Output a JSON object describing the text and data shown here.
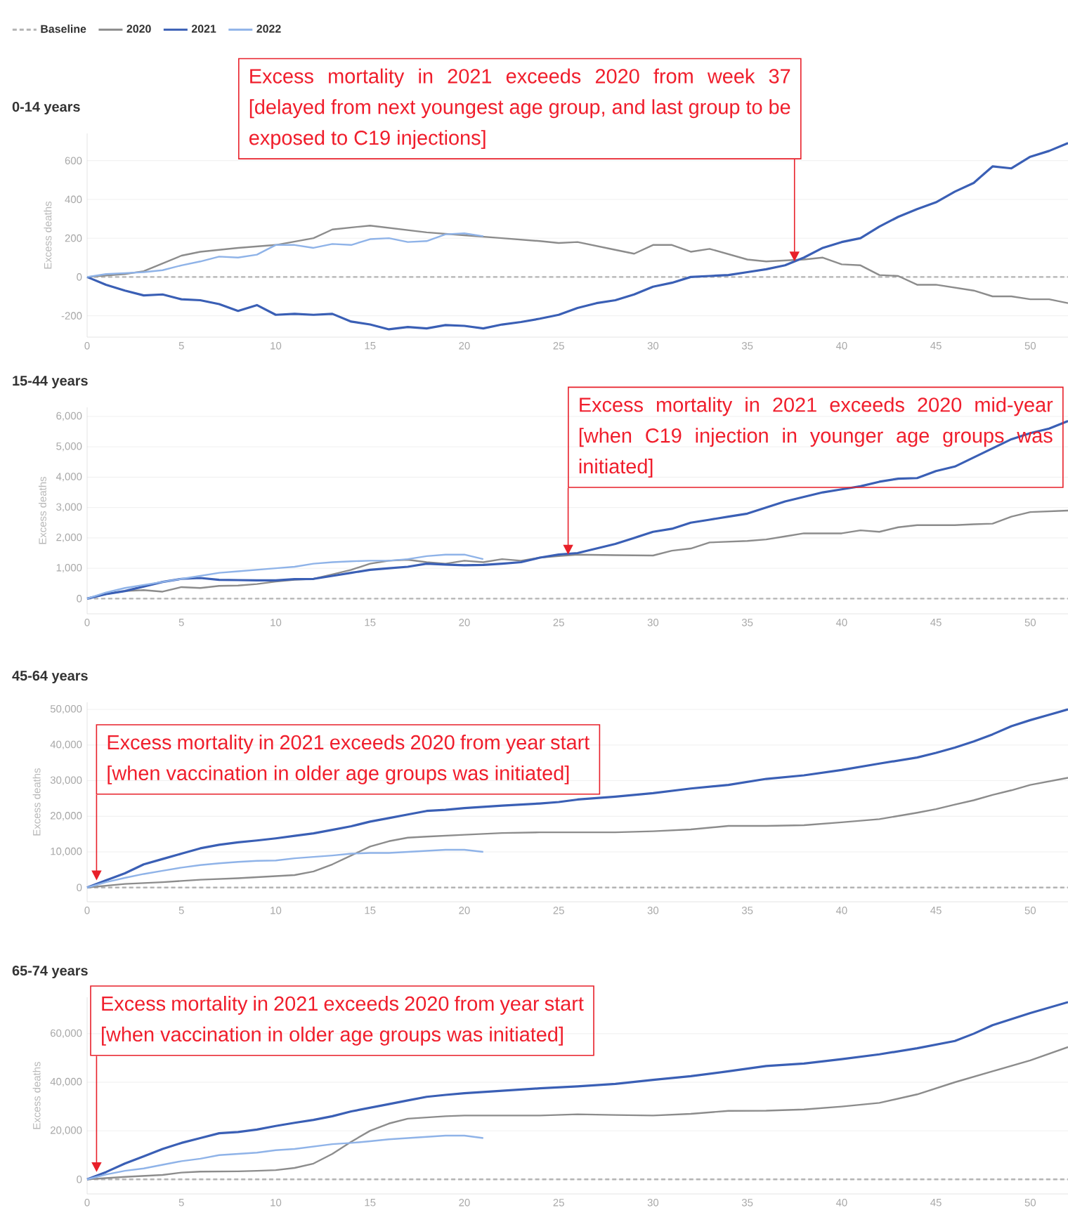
{
  "chart_data": [
    {
      "type": "line",
      "title": "0-14 years",
      "ylabel": "Excess deaths",
      "xlim": [
        0,
        52
      ],
      "xticks": [
        0,
        5,
        10,
        15,
        20,
        25,
        30,
        35,
        40,
        45,
        50
      ],
      "ylim": [
        -310,
        740
      ],
      "yticks": [
        -200,
        0,
        200,
        400,
        600
      ],
      "grid": "y",
      "legend": "top left",
      "series": [
        {
          "name": "Baseline",
          "color": "#b4b4b4",
          "line_style": "dashed",
          "x": [
            0,
            52
          ],
          "values": [
            0,
            0
          ]
        },
        {
          "name": "2020",
          "color": "#8c8c8c",
          "x": [
            0,
            2,
            3,
            4,
            5,
            6,
            8,
            10,
            12,
            13,
            15,
            18,
            20,
            22,
            24,
            25,
            26,
            28,
            29,
            30,
            31,
            32,
            33,
            35,
            36,
            38,
            39,
            40,
            41,
            42,
            43,
            44,
            45,
            47,
            48,
            49,
            50,
            51,
            52
          ],
          "values": [
            0,
            15,
            30,
            70,
            110,
            130,
            150,
            165,
            200,
            245,
            265,
            230,
            215,
            200,
            185,
            175,
            180,
            140,
            120,
            165,
            165,
            130,
            145,
            90,
            80,
            90,
            100,
            65,
            60,
            10,
            5,
            -40,
            -40,
            -70,
            -100,
            -100,
            -115,
            -115,
            -135
          ]
        },
        {
          "name": "2021",
          "color": "#3a5fb5",
          "x": [
            0,
            1,
            2,
            3,
            4,
            5,
            6,
            7,
            8,
            9,
            10,
            11,
            12,
            13,
            14,
            15,
            16,
            17,
            18,
            19,
            20,
            21,
            22,
            23,
            24,
            25,
            26,
            27,
            28,
            29,
            30,
            31,
            32,
            33,
            34,
            35,
            36,
            37,
            38,
            39,
            40,
            41,
            42,
            43,
            44,
            45,
            46,
            47,
            48,
            49,
            50,
            51,
            52
          ],
          "values": [
            0,
            -40,
            -70,
            -95,
            -90,
            -115,
            -120,
            -140,
            -175,
            -145,
            -195,
            -190,
            -195,
            -190,
            -230,
            -245,
            -270,
            -258,
            -265,
            -248,
            -252,
            -265,
            -245,
            -232,
            -215,
            -195,
            -160,
            -135,
            -120,
            -90,
            -50,
            -30,
            0,
            5,
            10,
            25,
            40,
            60,
            100,
            150,
            180,
            200,
            260,
            310,
            350,
            385,
            440,
            485,
            570,
            560,
            620,
            650,
            690
          ]
        },
        {
          "name": "2022",
          "color": "#8fb3e8",
          "x": [
            0,
            1,
            2,
            3,
            4,
            5,
            6,
            7,
            8,
            9,
            10,
            11,
            12,
            13,
            14,
            15,
            16,
            17,
            18,
            19,
            20,
            21
          ],
          "values": [
            0,
            15,
            20,
            25,
            35,
            60,
            80,
            105,
            100,
            115,
            165,
            165,
            150,
            170,
            165,
            195,
            200,
            180,
            185,
            220,
            225,
            210
          ]
        }
      ],
      "annotations": [
        {
          "text": "Excess mortality in 2021  exceeds 2020 from week 37 [delayed from next youngest age group, and last group to be exposed to C19 injections]",
          "x": 37.5,
          "y": 80
        }
      ]
    },
    {
      "type": "line",
      "title": "15-44 years",
      "ylabel": "Excess deaths",
      "xlim": [
        0,
        52
      ],
      "xticks": [
        0,
        5,
        10,
        15,
        20,
        25,
        30,
        35,
        40,
        45,
        50
      ],
      "ylim": [
        -500,
        6300
      ],
      "yticks": [
        0,
        {
          "value": 1000,
          "label": "1,000"
        },
        {
          "value": 2000,
          "label": "2,000"
        },
        {
          "value": 3000,
          "label": "3,000"
        },
        {
          "value": 4000,
          "label": "4,000"
        },
        {
          "value": 5000,
          "label": "5,000"
        },
        {
          "value": 6000,
          "label": "6,000"
        }
      ],
      "grid": "y",
      "series": [
        {
          "color": "#b4b4b4",
          "line_style": "dashed",
          "x": [
            0,
            52
          ],
          "values": [
            0,
            0
          ]
        },
        {
          "color": "#8c8c8c",
          "x": [
            0,
            1,
            2,
            3,
            4,
            5,
            6,
            7,
            8,
            9,
            10,
            11,
            12,
            13,
            14,
            15,
            16,
            17,
            18,
            19,
            20,
            21,
            22,
            23,
            24,
            25,
            26,
            28,
            30,
            31,
            32,
            33,
            35,
            36,
            37,
            38,
            40,
            41,
            42,
            43,
            44,
            46,
            47,
            48,
            49,
            50,
            52
          ],
          "values": [
            0,
            150,
            250,
            280,
            230,
            380,
            350,
            420,
            430,
            480,
            560,
            620,
            650,
            800,
            950,
            1150,
            1250,
            1280,
            1200,
            1150,
            1250,
            1200,
            1300,
            1250,
            1350,
            1400,
            1450,
            1430,
            1420,
            1580,
            1650,
            1850,
            1900,
            1950,
            2050,
            2150,
            2150,
            2250,
            2200,
            2350,
            2420,
            2420,
            2450,
            2470,
            2700,
            2850,
            2900
          ]
        },
        {
          "color": "#3a5fb5",
          "x": [
            0,
            1,
            2,
            3,
            4,
            5,
            6,
            7,
            8,
            9,
            10,
            11,
            12,
            13,
            14,
            15,
            16,
            17,
            18,
            19,
            20,
            21,
            22,
            23,
            24,
            25,
            26,
            27,
            28,
            29,
            30,
            31,
            32,
            33,
            34,
            35,
            36,
            37,
            38,
            39,
            40,
            41,
            42,
            43,
            44,
            45,
            46,
            47,
            48,
            49,
            50,
            51,
            52
          ],
          "values": [
            0,
            150,
            250,
            400,
            550,
            650,
            680,
            620,
            610,
            600,
            600,
            640,
            650,
            750,
            850,
            950,
            1000,
            1050,
            1150,
            1120,
            1100,
            1110,
            1150,
            1200,
            1350,
            1450,
            1500,
            1650,
            1800,
            2000,
            2200,
            2300,
            2500,
            2600,
            2700,
            2800,
            3000,
            3200,
            3350,
            3500,
            3600,
            3700,
            3850,
            3950,
            3970,
            4200,
            4350,
            4650,
            4950,
            5250,
            5450,
            5600,
            5850
          ]
        },
        {
          "color": "#8fb3e8",
          "x": [
            0,
            1,
            2,
            3,
            4,
            5,
            6,
            7,
            8,
            9,
            10,
            11,
            12,
            13,
            14,
            15,
            16,
            17,
            18,
            19,
            20,
            21
          ],
          "values": [
            0,
            200,
            350,
            450,
            550,
            650,
            750,
            850,
            900,
            950,
            1000,
            1050,
            1150,
            1200,
            1230,
            1250,
            1250,
            1300,
            1400,
            1450,
            1450,
            1300
          ]
        }
      ],
      "annotations": [
        {
          "text": "Excess mortality in 2021  exceeds 2020 mid-year [when C19 injection in younger age groups was initiated]",
          "x": 25.5,
          "y": 1450
        }
      ]
    },
    {
      "type": "line",
      "title": "45-64 years",
      "ylabel": "Excess deaths",
      "xlim": [
        0,
        52
      ],
      "xticks": [
        0,
        5,
        10,
        15,
        20,
        25,
        30,
        35,
        40,
        45,
        50
      ],
      "ylim": [
        -4000,
        52000
      ],
      "yticks": [
        0,
        {
          "value": 10000,
          "label": "10,000"
        },
        {
          "value": 20000,
          "label": "20,000"
        },
        {
          "value": 30000,
          "label": "30,000"
        },
        {
          "value": 40000,
          "label": "40,000"
        },
        {
          "value": 50000,
          "label": "50,000"
        }
      ],
      "grid": "y",
      "series": [
        {
          "color": "#b4b4b4",
          "line_style": "dashed",
          "x": [
            0,
            52
          ],
          "values": [
            0,
            0
          ]
        },
        {
          "color": "#8c8c8c",
          "x": [
            0,
            2,
            4,
            6,
            8,
            10,
            11,
            12,
            13,
            14,
            15,
            16,
            17,
            18,
            20,
            22,
            24,
            26,
            28,
            30,
            32,
            34,
            36,
            38,
            40,
            42,
            44,
            45,
            46,
            47,
            48,
            49,
            50,
            52
          ],
          "values": [
            0,
            1000,
            1500,
            2200,
            2600,
            3200,
            3500,
            4500,
            6500,
            9000,
            11500,
            13000,
            14000,
            14300,
            14800,
            15300,
            15500,
            15500,
            15500,
            15800,
            16300,
            17300,
            17300,
            17500,
            18300,
            19200,
            21000,
            22000,
            23300,
            24500,
            26000,
            27300,
            28800,
            30800
          ]
        },
        {
          "color": "#3a5fb5",
          "x": [
            0,
            1,
            2,
            3,
            4,
            5,
            6,
            7,
            8,
            9,
            10,
            11,
            12,
            13,
            14,
            15,
            16,
            17,
            18,
            19,
            20,
            22,
            24,
            25,
            26,
            28,
            30,
            32,
            34,
            36,
            38,
            40,
            42,
            44,
            45,
            46,
            47,
            48,
            49,
            50,
            51,
            52
          ],
          "values": [
            0,
            2000,
            4000,
            6500,
            8000,
            9500,
            11000,
            12000,
            12700,
            13200,
            13800,
            14500,
            15200,
            16200,
            17200,
            18500,
            19500,
            20500,
            21500,
            21800,
            22300,
            23000,
            23600,
            24000,
            24700,
            25500,
            26500,
            27800,
            28800,
            30500,
            31500,
            33000,
            34800,
            36500,
            37800,
            39300,
            41000,
            43000,
            45300,
            47000,
            48500,
            50000
          ]
        },
        {
          "color": "#8fb3e8",
          "x": [
            0,
            1,
            2,
            3,
            4,
            5,
            6,
            7,
            8,
            9,
            10,
            11,
            12,
            13,
            14,
            15,
            16,
            17,
            18,
            19,
            20,
            21
          ],
          "values": [
            0,
            1500,
            2700,
            3800,
            4700,
            5600,
            6300,
            6800,
            7200,
            7500,
            7600,
            8200,
            8600,
            9000,
            9500,
            9700,
            9700,
            10000,
            10300,
            10600,
            10600,
            10000
          ]
        }
      ],
      "annotations": [
        {
          "text": "Excess mortality in 2021  exceeds 2020 from year start [when vaccination  in older age groups was initiated]",
          "x": 0.5,
          "y": 2000
        }
      ]
    },
    {
      "type": "line",
      "title": "65-74 years",
      "ylabel": "Excess deaths",
      "xlim": [
        0,
        52
      ],
      "xticks": [
        0,
        5,
        10,
        15,
        20,
        25,
        30,
        35,
        40,
        45,
        50
      ],
      "ylim": [
        -6000,
        75000
      ],
      "yticks": [
        0,
        {
          "value": 20000,
          "label": "20,000"
        },
        {
          "value": 40000,
          "label": "40,000"
        },
        {
          "value": 60000,
          "label": "60,000"
        }
      ],
      "grid": "y",
      "series": [
        {
          "color": "#b4b4b4",
          "line_style": "dashed",
          "x": [
            0,
            52
          ],
          "values": [
            0,
            0
          ]
        },
        {
          "color": "#8c8c8c",
          "x": [
            0,
            2,
            4,
            5,
            6,
            8,
            9,
            10,
            11,
            12,
            13,
            14,
            15,
            16,
            17,
            18,
            19,
            20,
            24,
            26,
            28,
            30,
            32,
            34,
            36,
            38,
            40,
            42,
            44,
            46,
            48,
            50,
            52
          ],
          "values": [
            0,
            1000,
            1800,
            2800,
            3200,
            3300,
            3500,
            3800,
            4700,
            6500,
            10500,
            15500,
            20000,
            23000,
            25000,
            25500,
            26000,
            26300,
            26300,
            26800,
            26500,
            26300,
            27000,
            28200,
            28300,
            28800,
            30000,
            31500,
            35000,
            40000,
            44500,
            49000,
            54500
          ]
        },
        {
          "color": "#3a5fb5",
          "x": [
            0,
            1,
            2,
            3,
            4,
            5,
            6,
            7,
            8,
            9,
            10,
            11,
            12,
            13,
            14,
            15,
            16,
            17,
            18,
            19,
            20,
            22,
            24,
            26,
            28,
            30,
            32,
            34,
            36,
            38,
            40,
            42,
            44,
            46,
            47,
            48,
            50,
            52
          ],
          "values": [
            0,
            3000,
            6500,
            9500,
            12500,
            15000,
            17000,
            19000,
            19500,
            20500,
            22000,
            23300,
            24500,
            26000,
            28000,
            29500,
            31000,
            32500,
            34000,
            34800,
            35500,
            36500,
            37500,
            38300,
            39300,
            41000,
            42500,
            44500,
            46700,
            47700,
            49500,
            51500,
            54000,
            57000,
            60000,
            63500,
            68500,
            73000
          ]
        },
        {
          "color": "#8fb3e8",
          "x": [
            0,
            1,
            2,
            3,
            4,
            5,
            6,
            7,
            8,
            9,
            10,
            11,
            12,
            13,
            14,
            15,
            16,
            17,
            18,
            19,
            20,
            21
          ],
          "values": [
            0,
            2000,
            3500,
            4500,
            6000,
            7500,
            8500,
            10000,
            10500,
            11000,
            12000,
            12500,
            13500,
            14500,
            15000,
            15700,
            16500,
            17000,
            17500,
            18000,
            18000,
            17000
          ]
        }
      ],
      "annotations": [
        {
          "text": "Excess mortality in 2021  exceeds 2020 from year start [when vaccination  in older age groups was initiated]",
          "x": 0.5,
          "y": 3000
        }
      ]
    }
  ]
}
